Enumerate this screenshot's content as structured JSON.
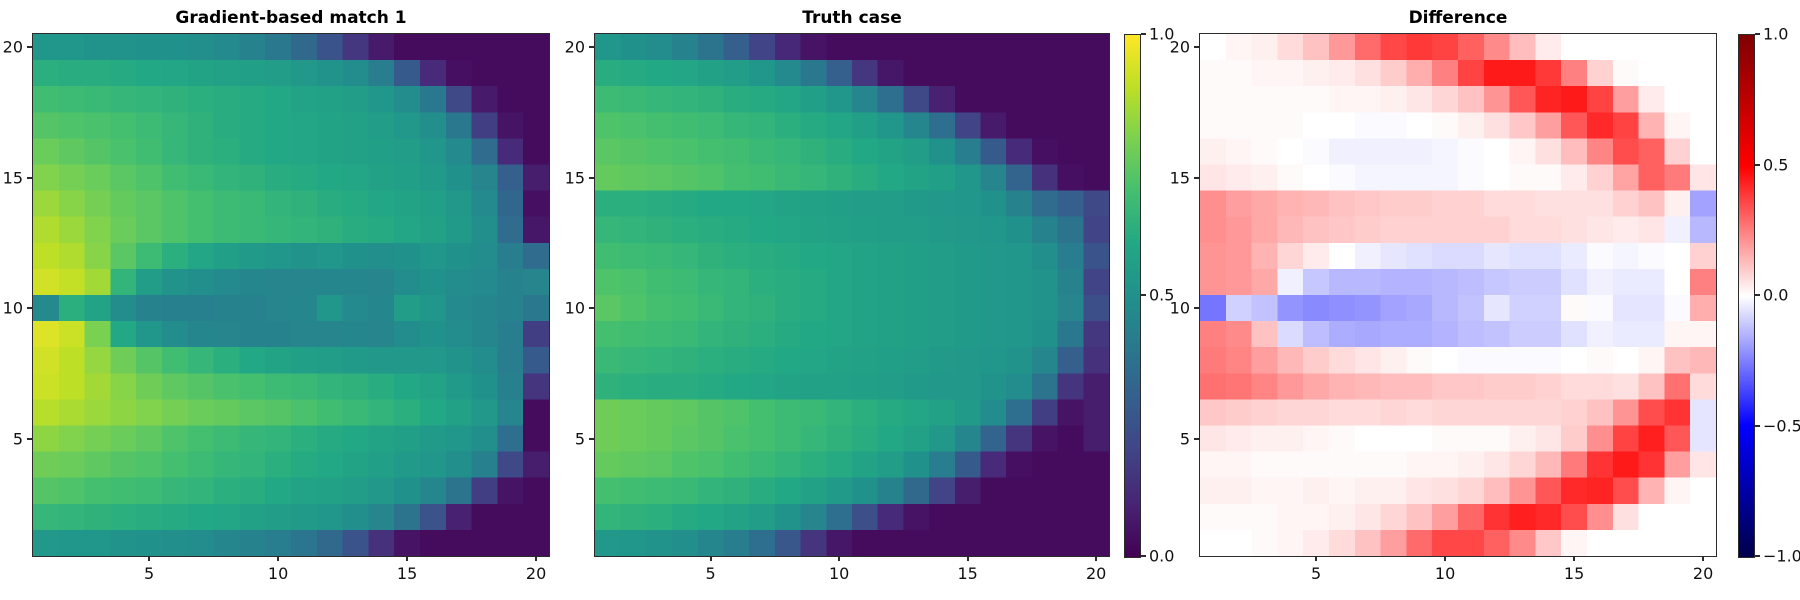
{
  "figure": {
    "background": "#ffffff",
    "axis_color": "#2b2b2b",
    "text_color": "#000000"
  },
  "colormaps": {
    "viridis": [
      [
        0.0,
        "#440154"
      ],
      [
        0.1,
        "#482475"
      ],
      [
        0.2,
        "#414487"
      ],
      [
        0.3,
        "#355f8d"
      ],
      [
        0.4,
        "#2a788e"
      ],
      [
        0.5,
        "#21918c"
      ],
      [
        0.6,
        "#22a884"
      ],
      [
        0.7,
        "#44bf70"
      ],
      [
        0.8,
        "#7ad151"
      ],
      [
        0.9,
        "#bddf26"
      ],
      [
        1.0,
        "#fde725"
      ]
    ],
    "seismic": [
      [
        0.0,
        "#00004c"
      ],
      [
        0.25,
        "#0000ff"
      ],
      [
        0.5,
        "#ffffff"
      ],
      [
        0.75,
        "#ff0000"
      ],
      [
        1.0,
        "#800000"
      ]
    ]
  },
  "chart_data": [
    {
      "type": "heatmap",
      "title": "Gradient-based match 1",
      "colormap": "viridis",
      "zlim": [
        0,
        1
      ],
      "grid": [
        20,
        20
      ],
      "x_range": [
        0.5,
        20.5
      ],
      "y_range": [
        0.5,
        20.5
      ],
      "x_ticks": [
        5,
        10,
        15,
        20
      ],
      "y_ticks": [
        5,
        10,
        15,
        20
      ],
      "rows_order": "top_to_bottom_y20_first",
      "values": [
        [
          0.52,
          0.52,
          0.51,
          0.51,
          0.5,
          0.5,
          0.49,
          0.47,
          0.44,
          0.4,
          0.34,
          0.26,
          0.16,
          0.07,
          0.03,
          0.03,
          0.03,
          0.03,
          0.03,
          0.03
        ],
        [
          0.63,
          0.62,
          0.62,
          0.61,
          0.6,
          0.59,
          0.58,
          0.57,
          0.56,
          0.55,
          0.53,
          0.51,
          0.48,
          0.42,
          0.28,
          0.12,
          0.04,
          0.03,
          0.03,
          0.03
        ],
        [
          0.69,
          0.68,
          0.67,
          0.66,
          0.65,
          0.64,
          0.63,
          0.62,
          0.61,
          0.6,
          0.58,
          0.57,
          0.55,
          0.52,
          0.48,
          0.4,
          0.22,
          0.07,
          0.03,
          0.03
        ],
        [
          0.73,
          0.72,
          0.71,
          0.7,
          0.68,
          0.66,
          0.64,
          0.62,
          0.61,
          0.6,
          0.59,
          0.58,
          0.57,
          0.55,
          0.53,
          0.49,
          0.4,
          0.18,
          0.05,
          0.03
        ],
        [
          0.77,
          0.75,
          0.73,
          0.71,
          0.69,
          0.66,
          0.64,
          0.63,
          0.61,
          0.6,
          0.59,
          0.58,
          0.57,
          0.56,
          0.55,
          0.52,
          0.47,
          0.35,
          0.12,
          0.03
        ],
        [
          0.81,
          0.79,
          0.77,
          0.74,
          0.72,
          0.69,
          0.67,
          0.65,
          0.64,
          0.62,
          0.61,
          0.6,
          0.59,
          0.57,
          0.56,
          0.54,
          0.5,
          0.45,
          0.3,
          0.08
        ],
        [
          0.85,
          0.82,
          0.79,
          0.76,
          0.74,
          0.72,
          0.7,
          0.68,
          0.67,
          0.65,
          0.64,
          0.62,
          0.61,
          0.59,
          0.58,
          0.56,
          0.53,
          0.47,
          0.33,
          0.04
        ],
        [
          0.88,
          0.85,
          0.81,
          0.77,
          0.74,
          0.72,
          0.7,
          0.68,
          0.67,
          0.66,
          0.65,
          0.64,
          0.62,
          0.61,
          0.59,
          0.57,
          0.54,
          0.49,
          0.35,
          0.06
        ],
        [
          0.9,
          0.88,
          0.82,
          0.74,
          0.68,
          0.63,
          0.59,
          0.56,
          0.54,
          0.52,
          0.51,
          0.52,
          0.5,
          0.49,
          0.5,
          0.52,
          0.5,
          0.48,
          0.42,
          0.35
        ],
        [
          0.93,
          0.91,
          0.86,
          0.65,
          0.55,
          0.51,
          0.49,
          0.47,
          0.46,
          0.45,
          0.45,
          0.46,
          0.46,
          0.45,
          0.48,
          0.5,
          0.48,
          0.47,
          0.44,
          0.45
        ],
        [
          0.47,
          0.63,
          0.58,
          0.48,
          0.44,
          0.43,
          0.43,
          0.44,
          0.44,
          0.45,
          0.46,
          0.52,
          0.47,
          0.46,
          0.55,
          0.52,
          0.47,
          0.46,
          0.44,
          0.4
        ],
        [
          0.95,
          0.92,
          0.8,
          0.6,
          0.52,
          0.48,
          0.46,
          0.45,
          0.44,
          0.44,
          0.45,
          0.45,
          0.46,
          0.45,
          0.48,
          0.5,
          0.48,
          0.46,
          0.42,
          0.18
        ],
        [
          0.93,
          0.9,
          0.84,
          0.78,
          0.73,
          0.69,
          0.66,
          0.63,
          0.6,
          0.58,
          0.56,
          0.55,
          0.54,
          0.53,
          0.53,
          0.53,
          0.51,
          0.48,
          0.42,
          0.28
        ],
        [
          0.92,
          0.9,
          0.86,
          0.82,
          0.78,
          0.75,
          0.73,
          0.71,
          0.7,
          0.68,
          0.67,
          0.65,
          0.64,
          0.62,
          0.6,
          0.58,
          0.54,
          0.5,
          0.43,
          0.15
        ],
        [
          0.89,
          0.87,
          0.85,
          0.83,
          0.81,
          0.79,
          0.77,
          0.76,
          0.74,
          0.73,
          0.71,
          0.69,
          0.67,
          0.65,
          0.63,
          0.6,
          0.57,
          0.53,
          0.45,
          0.03
        ],
        [
          0.83,
          0.81,
          0.79,
          0.77,
          0.75,
          0.72,
          0.7,
          0.68,
          0.66,
          0.65,
          0.63,
          0.61,
          0.6,
          0.58,
          0.56,
          0.54,
          0.52,
          0.49,
          0.36,
          0.03
        ],
        [
          0.78,
          0.77,
          0.75,
          0.73,
          0.72,
          0.7,
          0.68,
          0.66,
          0.65,
          0.63,
          0.61,
          0.6,
          0.58,
          0.56,
          0.54,
          0.52,
          0.49,
          0.43,
          0.22,
          0.08
        ],
        [
          0.73,
          0.72,
          0.7,
          0.69,
          0.68,
          0.66,
          0.65,
          0.63,
          0.62,
          0.6,
          0.58,
          0.57,
          0.55,
          0.53,
          0.5,
          0.46,
          0.38,
          0.18,
          0.05,
          0.03
        ],
        [
          0.66,
          0.65,
          0.64,
          0.63,
          0.62,
          0.61,
          0.6,
          0.59,
          0.57,
          0.55,
          0.54,
          0.52,
          0.49,
          0.45,
          0.38,
          0.25,
          0.09,
          0.03,
          0.03,
          0.03
        ],
        [
          0.53,
          0.52,
          0.52,
          0.51,
          0.5,
          0.49,
          0.48,
          0.46,
          0.44,
          0.42,
          0.39,
          0.34,
          0.26,
          0.14,
          0.05,
          0.03,
          0.03,
          0.03,
          0.03,
          0.03
        ]
      ]
    },
    {
      "type": "heatmap",
      "title": "Truth case",
      "colormap": "viridis",
      "zlim": [
        0,
        1
      ],
      "grid": [
        20,
        20
      ],
      "x_range": [
        0.5,
        20.5
      ],
      "y_range": [
        0.5,
        20.5
      ],
      "x_ticks": [
        5,
        10,
        15,
        20
      ],
      "y_ticks": [
        5,
        10,
        15,
        20
      ],
      "rows_order": "top_to_bottom_y20_first",
      "colorbar": {
        "tick_labels": [
          "1.0",
          "0.5",
          "0.0"
        ],
        "tick_values": [
          1,
          0.5,
          0
        ]
      },
      "values": [
        [
          0.52,
          0.5,
          0.48,
          0.44,
          0.38,
          0.3,
          0.2,
          0.11,
          0.05,
          0.03,
          0.03,
          0.03,
          0.03,
          0.03,
          0.03,
          0.03,
          0.03,
          0.03,
          0.03,
          0.03
        ],
        [
          0.62,
          0.61,
          0.6,
          0.59,
          0.57,
          0.55,
          0.52,
          0.47,
          0.4,
          0.3,
          0.16,
          0.06,
          0.03,
          0.03,
          0.03,
          0.03,
          0.03,
          0.03,
          0.03,
          0.03
        ],
        [
          0.68,
          0.67,
          0.66,
          0.65,
          0.64,
          0.62,
          0.61,
          0.59,
          0.56,
          0.52,
          0.46,
          0.36,
          0.22,
          0.09,
          0.03,
          0.03,
          0.03,
          0.03,
          0.03,
          0.03
        ],
        [
          0.72,
          0.71,
          0.7,
          0.69,
          0.68,
          0.66,
          0.65,
          0.63,
          0.61,
          0.59,
          0.56,
          0.52,
          0.46,
          0.36,
          0.2,
          0.07,
          0.03,
          0.03,
          0.03,
          0.03
        ],
        [
          0.74,
          0.73,
          0.72,
          0.71,
          0.7,
          0.69,
          0.67,
          0.66,
          0.64,
          0.62,
          0.6,
          0.58,
          0.55,
          0.5,
          0.42,
          0.28,
          0.12,
          0.04,
          0.03,
          0.03
        ],
        [
          0.76,
          0.75,
          0.74,
          0.73,
          0.72,
          0.7,
          0.69,
          0.67,
          0.66,
          0.64,
          0.62,
          0.6,
          0.58,
          0.56,
          0.52,
          0.45,
          0.32,
          0.14,
          0.04,
          0.03
        ],
        [
          0.63,
          0.63,
          0.62,
          0.61,
          0.6,
          0.6,
          0.59,
          0.58,
          0.57,
          0.56,
          0.55,
          0.55,
          0.54,
          0.53,
          0.52,
          0.5,
          0.44,
          0.35,
          0.3,
          0.22
        ],
        [
          0.66,
          0.65,
          0.64,
          0.63,
          0.62,
          0.61,
          0.6,
          0.59,
          0.58,
          0.57,
          0.56,
          0.55,
          0.55,
          0.54,
          0.53,
          0.52,
          0.5,
          0.44,
          0.38,
          0.2
        ],
        [
          0.69,
          0.68,
          0.67,
          0.66,
          0.64,
          0.63,
          0.62,
          0.61,
          0.6,
          0.59,
          0.58,
          0.57,
          0.56,
          0.55,
          0.54,
          0.53,
          0.52,
          0.49,
          0.42,
          0.26
        ],
        [
          0.72,
          0.71,
          0.69,
          0.68,
          0.66,
          0.65,
          0.63,
          0.62,
          0.61,
          0.59,
          0.58,
          0.57,
          0.56,
          0.55,
          0.54,
          0.53,
          0.52,
          0.51,
          0.44,
          0.2
        ],
        [
          0.74,
          0.72,
          0.7,
          0.69,
          0.67,
          0.65,
          0.64,
          0.62,
          0.61,
          0.59,
          0.58,
          0.57,
          0.56,
          0.55,
          0.54,
          0.53,
          0.52,
          0.51,
          0.45,
          0.24
        ],
        [
          0.7,
          0.69,
          0.68,
          0.67,
          0.65,
          0.64,
          0.63,
          0.61,
          0.6,
          0.59,
          0.58,
          0.57,
          0.56,
          0.55,
          0.54,
          0.53,
          0.52,
          0.5,
          0.4,
          0.16
        ],
        [
          0.67,
          0.66,
          0.65,
          0.64,
          0.63,
          0.62,
          0.61,
          0.6,
          0.59,
          0.58,
          0.57,
          0.56,
          0.55,
          0.54,
          0.53,
          0.52,
          0.51,
          0.46,
          0.3,
          0.14
        ],
        [
          0.64,
          0.63,
          0.62,
          0.62,
          0.61,
          0.6,
          0.59,
          0.58,
          0.57,
          0.57,
          0.56,
          0.55,
          0.54,
          0.53,
          0.53,
          0.51,
          0.48,
          0.38,
          0.15,
          0.08
        ],
        [
          0.78,
          0.77,
          0.76,
          0.75,
          0.73,
          0.72,
          0.7,
          0.68,
          0.67,
          0.65,
          0.63,
          0.61,
          0.59,
          0.57,
          0.54,
          0.48,
          0.36,
          0.18,
          0.05,
          0.08
        ],
        [
          0.78,
          0.77,
          0.76,
          0.74,
          0.73,
          0.71,
          0.7,
          0.68,
          0.66,
          0.64,
          0.62,
          0.6,
          0.57,
          0.53,
          0.46,
          0.32,
          0.15,
          0.05,
          0.03,
          0.08
        ],
        [
          0.76,
          0.75,
          0.74,
          0.72,
          0.71,
          0.69,
          0.67,
          0.65,
          0.63,
          0.61,
          0.58,
          0.55,
          0.5,
          0.42,
          0.28,
          0.12,
          0.04,
          0.03,
          0.03,
          0.03
        ],
        [
          0.7,
          0.69,
          0.68,
          0.67,
          0.65,
          0.64,
          0.62,
          0.6,
          0.57,
          0.54,
          0.5,
          0.44,
          0.34,
          0.2,
          0.08,
          0.03,
          0.03,
          0.03,
          0.03,
          0.03
        ],
        [
          0.65,
          0.64,
          0.63,
          0.61,
          0.6,
          0.58,
          0.55,
          0.51,
          0.45,
          0.36,
          0.24,
          0.12,
          0.05,
          0.03,
          0.03,
          0.03,
          0.03,
          0.03,
          0.03,
          0.03
        ],
        [
          0.53,
          0.52,
          0.51,
          0.49,
          0.46,
          0.42,
          0.36,
          0.27,
          0.15,
          0.06,
          0.03,
          0.03,
          0.03,
          0.03,
          0.03,
          0.03,
          0.03,
          0.03,
          0.03,
          0.03
        ]
      ]
    },
    {
      "type": "heatmap",
      "title": "Difference",
      "colormap": "seismic",
      "zlim": [
        -1,
        1
      ],
      "grid": [
        20,
        20
      ],
      "x_range": [
        0.5,
        20.5
      ],
      "y_range": [
        0.5,
        20.5
      ],
      "x_ticks": [
        5,
        10,
        15,
        20
      ],
      "y_ticks": [
        5,
        10,
        15,
        20
      ],
      "rows_order": "top_to_bottom_y20_first",
      "values_derived_from": "chart_data[0].values minus chart_data[1].values",
      "colorbar": {
        "tick_labels": [
          "1.0",
          "0.5",
          "0.0",
          "−0.5",
          "−1.0"
        ],
        "tick_values": [
          1,
          0.5,
          0,
          -0.5,
          -1
        ]
      }
    }
  ]
}
